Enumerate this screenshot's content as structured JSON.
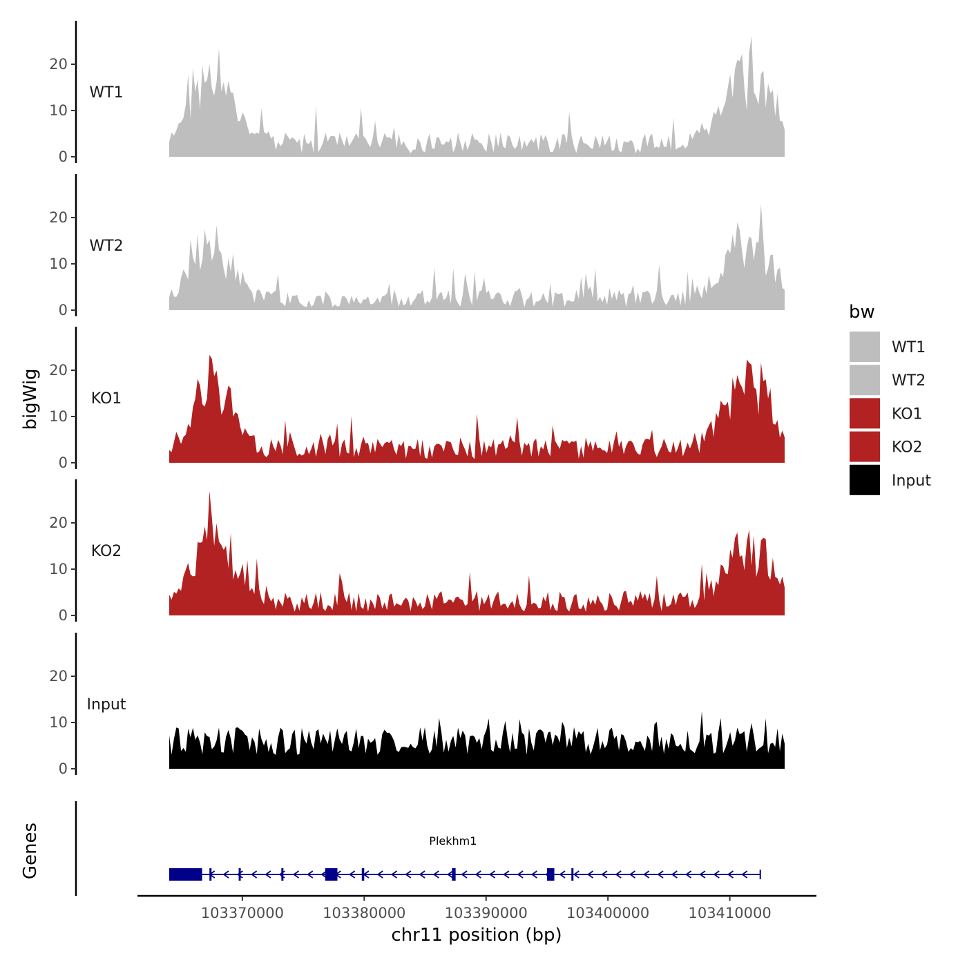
{
  "chart_data": {
    "type": "area",
    "chromosome": "chr11",
    "xlabel": "chr11 position (bp)",
    "ylabel_tracks": "bigWig",
    "ylabel_genes": "Genes",
    "x_range": [
      103364000,
      103414500
    ],
    "x_ticks": [
      103370000,
      103380000,
      103390000,
      103400000,
      103410000
    ],
    "x_tick_labels": [
      "103370000",
      "103380000",
      "103390000",
      "103400000",
      "103410000"
    ],
    "ylim": [
      0,
      28
    ],
    "y_ticks": [
      0,
      10,
      20
    ],
    "y_tick_labels": [
      "0",
      "10",
      "20"
    ],
    "legend": {
      "title": "bw",
      "entries": [
        {
          "label": "WT1",
          "color": "#bebebe"
        },
        {
          "label": "WT2",
          "color": "#bebebe"
        },
        {
          "label": "KO1",
          "color": "#b22222"
        },
        {
          "label": "KO2",
          "color": "#b22222"
        },
        {
          "label": "Input",
          "color": "#000000"
        }
      ]
    },
    "series": [
      {
        "name": "WT1",
        "color": "#bebebe",
        "seed": 11,
        "left_peak": 20,
        "right_peak": 19,
        "base": 3
      },
      {
        "name": "WT2",
        "color": "#bebebe",
        "seed": 23,
        "left_peak": 15,
        "right_peak": 15,
        "base": 2.5
      },
      {
        "name": "KO1",
        "color": "#b22222",
        "seed": 37,
        "left_peak": 16,
        "right_peak": 19,
        "base": 3
      },
      {
        "name": "KO2",
        "color": "#b22222",
        "seed": 53,
        "left_peak": 20,
        "right_peak": 15,
        "base": 3
      },
      {
        "name": "Input",
        "color": "#000000",
        "seed": 71,
        "left_peak": 0,
        "right_peak": 0,
        "base": 7
      }
    ],
    "gene": {
      "name": "Plekhm1",
      "color": "#00008b",
      "start": 103364000,
      "end": 103412500,
      "strand": "-",
      "exons": [
        [
          103364000,
          103366700
        ],
        [
          103367300,
          103367450
        ],
        [
          103369700,
          103369800
        ],
        [
          103373200,
          103373300
        ],
        [
          103376800,
          103377800
        ],
        [
          103379800,
          103380000
        ],
        [
          103387200,
          103387500
        ],
        [
          103395000,
          103395600
        ],
        [
          103397000,
          103397100
        ]
      ]
    }
  }
}
